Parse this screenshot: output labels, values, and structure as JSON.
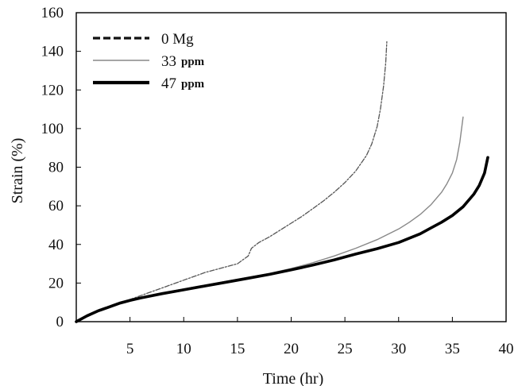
{
  "chart_data": {
    "type": "line",
    "xlabel": "Time (hr)",
    "ylabel": "Strain (%)",
    "xlim": [
      0,
      40
    ],
    "ylim": [
      0,
      160
    ],
    "xticks": [
      5,
      10,
      15,
      20,
      25,
      30,
      35,
      40
    ],
    "yticks": [
      0,
      20,
      40,
      60,
      80,
      100,
      120,
      140,
      160
    ],
    "grid": false,
    "legend_position": "top-left",
    "series": [
      {
        "name": "0 Mg",
        "unit": "",
        "style": "dashed",
        "color": "#555555",
        "x": [
          0,
          1,
          2,
          3,
          4,
          5,
          6,
          7,
          8,
          9,
          10,
          11,
          12,
          13,
          14,
          15,
          15.5,
          16,
          16.3,
          17,
          18,
          19,
          20,
          21,
          22,
          23,
          24,
          25,
          26,
          27,
          27.5,
          28,
          28.3,
          28.6,
          28.8,
          28.9
        ],
        "y": [
          0,
          3,
          6,
          8,
          10,
          11.5,
          13.5,
          15.5,
          17.5,
          19.5,
          21.5,
          23.5,
          25.5,
          27,
          28.5,
          30,
          32,
          34,
          38,
          41,
          44,
          47.5,
          51,
          54.5,
          58.5,
          62.5,
          67,
          72,
          78,
          86,
          92,
          101,
          110,
          122,
          134,
          145
        ]
      },
      {
        "name": "33",
        "unit": "ppm",
        "style": "solid",
        "color": "#888888",
        "x": [
          0,
          1,
          2,
          3,
          4,
          5,
          6,
          8,
          10,
          12,
          14,
          16,
          18,
          20,
          22,
          24,
          26,
          28,
          30,
          31,
          32,
          33,
          34,
          34.5,
          35,
          35.4,
          35.7,
          36
        ],
        "y": [
          0,
          3,
          5.5,
          7.5,
          9.5,
          11,
          12.5,
          14.8,
          17,
          19,
          21,
          23,
          25,
          27.5,
          30.5,
          34,
          38,
          42.5,
          48,
          51.5,
          55.5,
          60.5,
          67,
          71.5,
          77,
          84,
          93,
          106
        ]
      },
      {
        "name": "47",
        "unit": "ppm",
        "style": "solid-thick",
        "color": "#000000",
        "x": [
          0,
          1,
          2,
          3,
          4,
          5,
          6,
          8,
          10,
          12,
          14,
          16,
          18,
          20,
          22,
          24,
          26,
          28,
          30,
          32,
          33,
          34,
          35,
          36,
          37,
          37.5,
          38,
          38.3
        ],
        "y": [
          0,
          3,
          5.5,
          7.5,
          9.5,
          11,
          12.3,
          14.5,
          16.5,
          18.5,
          20.5,
          22.5,
          24.5,
          26.8,
          29.3,
          32,
          35,
          37.8,
          41,
          45.5,
          48.5,
          51.5,
          55,
          59.5,
          66,
          70.5,
          77,
          85
        ]
      }
    ]
  }
}
